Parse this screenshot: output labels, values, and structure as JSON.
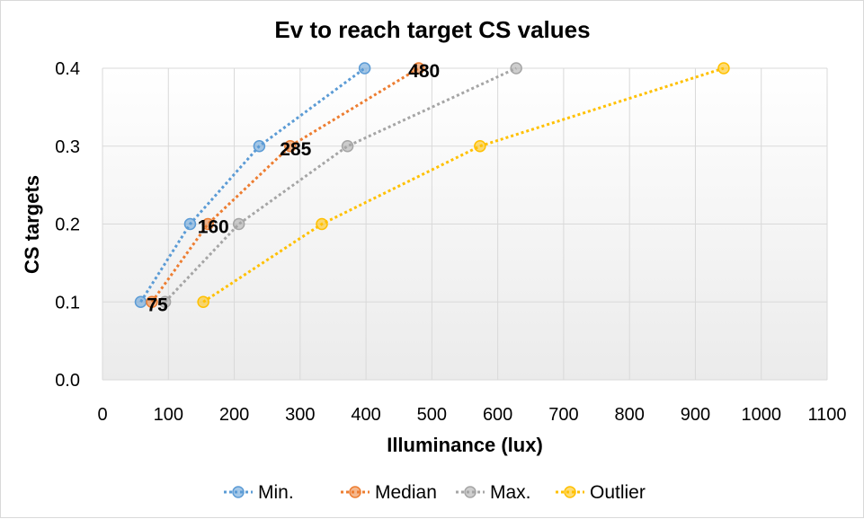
{
  "chart_data": {
    "type": "line",
    "title": "Ev to reach target CS values",
    "xlabel": "Illuminance (lux)",
    "ylabel": "CS targets",
    "xlim": [
      0,
      1100
    ],
    "ylim": [
      0,
      0.4
    ],
    "x_ticks": [
      "0",
      "100",
      "200",
      "300",
      "400",
      "500",
      "600",
      "700",
      "800",
      "900",
      "1000",
      "1100"
    ],
    "y_ticks": [
      "0.0",
      "0.1",
      "0.2",
      "0.3",
      "0.4"
    ],
    "grid": true,
    "legend_position": "bottom",
    "series": [
      {
        "name": "Min.",
        "color": "#5b9bd5",
        "x": [
          58,
          133,
          238,
          398
        ],
        "y": [
          0.1,
          0.2,
          0.3,
          0.4
        ]
      },
      {
        "name": "Median",
        "color": "#ed7d31",
        "x": [
          75,
          160,
          285,
          480
        ],
        "y": [
          0.1,
          0.2,
          0.3,
          0.4
        ],
        "data_labels": [
          "75",
          "160",
          "285",
          "480"
        ]
      },
      {
        "name": "Max.",
        "color": "#a5a5a5",
        "x": [
          95,
          207,
          372,
          628
        ],
        "y": [
          0.1,
          0.2,
          0.3,
          0.4
        ]
      },
      {
        "name": "Outlier",
        "color": "#ffc000",
        "x": [
          153,
          333,
          573,
          943
        ],
        "y": [
          0.1,
          0.2,
          0.3,
          0.4
        ]
      }
    ]
  }
}
